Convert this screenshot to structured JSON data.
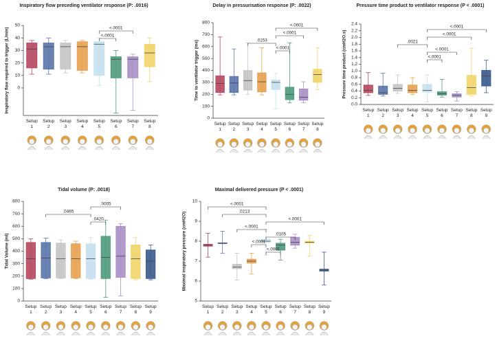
{
  "chart_data": [
    {
      "type": "box",
      "title": "Inspiratory flow preceding ventilator response (P: .0016)",
      "ylabel": "Inspiratory flow required to trigger (L/min)",
      "categories": [
        "Setup 1",
        "Setup 2",
        "Setup 3",
        "Setup 4",
        "Setup 5",
        "Setup 6",
        "Setup 7",
        "Setup 8"
      ],
      "colors": [
        "#b5475e",
        "#5a74a8",
        "#c4c4c4",
        "#e6a050",
        "#c5e0ee",
        "#4f9a7a",
        "#a98fc5",
        "#f2d46a"
      ],
      "boxes": [
        [
          11,
          16,
          31,
          36,
          38
        ],
        [
          11,
          15,
          33,
          36,
          40
        ],
        [
          12,
          15,
          33,
          36,
          38
        ],
        [
          12,
          14,
          33,
          37,
          38
        ],
        [
          2,
          10,
          35,
          37,
          40
        ],
        [
          -20,
          8,
          23,
          25,
          30
        ],
        [
          -18,
          8,
          23,
          25,
          27
        ],
        [
          5,
          17,
          28,
          35,
          40
        ]
      ],
      "ylim": [
        -22,
        50
      ],
      "yticks": [
        0,
        10,
        20,
        30,
        40,
        50
      ],
      "annotations": [
        {
          "label": "<.0001",
          "from": "Setup 5",
          "to": "Setup 7"
        },
        {
          "label": "<.0001",
          "from": "Setup 5",
          "to": "Setup 6"
        }
      ]
    },
    {
      "type": "box",
      "title": "Delay in pressurisation response (P: .0022)",
      "ylabel": "Time to ventilator trigger (ms)",
      "categories": [
        "Setup 1",
        "Setup 2",
        "Setup 3",
        "Setup 4",
        "Setup 5",
        "Setup 6",
        "Setup 7",
        "Setup 8"
      ],
      "colors": [
        "#b5475e",
        "#5a74a8",
        "#c4c4c4",
        "#e6a050",
        "#c5e0ee",
        "#4f9a7a",
        "#a98fc5",
        "#f2d46a"
      ],
      "boxes": [
        [
          195,
          215,
          290,
          355,
          680
        ],
        [
          195,
          215,
          295,
          350,
          580
        ],
        [
          200,
          235,
          315,
          400,
          630
        ],
        [
          195,
          220,
          305,
          380,
          590
        ],
        [
          80,
          240,
          300,
          320,
          375
        ],
        [
          130,
          155,
          200,
          260,
          630
        ],
        [
          130,
          150,
          175,
          245,
          305
        ],
        [
          240,
          300,
          365,
          410,
          590
        ]
      ],
      "ylim": [
        0,
        800
      ],
      "yticks": [
        0,
        100,
        200,
        300,
        400,
        500,
        600,
        700,
        800
      ],
      "annotations": [
        {
          "label": "<.0001",
          "from": "Setup 5",
          "to": "Setup 8"
        },
        {
          "label": "<.0001",
          "from": "Setup 5",
          "to": "Setup 7"
        },
        {
          "label": ".0153",
          "from": "Setup 3",
          "to": "Setup 5"
        },
        {
          "label": "<.0001",
          "from": "Setup 5",
          "to": "Setup 6"
        }
      ]
    },
    {
      "type": "box",
      "title": "Pressure time product to ventilator response (P < .0001)",
      "ylabel": "Pressure time product (cmH2O.s)",
      "categories": [
        "Setup 1",
        "Setup 2",
        "Setup 3",
        "Setup 4",
        "Setup 5",
        "Setup 6",
        "Setup 7",
        "Setup 8",
        "Setup 9"
      ],
      "colors": [
        "#b5475e",
        "#5a74a8",
        "#c4c4c4",
        "#e6a050",
        "#c5e0ee",
        "#4f9a7a",
        "#a98fc5",
        "#f2d46a",
        "#3a5a8c"
      ],
      "boxes": [
        [
          0.27,
          0.35,
          0.42,
          0.58,
          0.95
        ],
        [
          0.25,
          0.3,
          0.35,
          0.55,
          0.93
        ],
        [
          0.33,
          0.4,
          0.48,
          0.6,
          0.88
        ],
        [
          0.3,
          0.35,
          0.42,
          0.58,
          0.8
        ],
        [
          0.08,
          0.37,
          0.42,
          0.6,
          0.88
        ],
        [
          0.22,
          0.28,
          0.32,
          0.38,
          0.75
        ],
        [
          0.1,
          0.22,
          0.27,
          0.32,
          0.38
        ],
        [
          0.25,
          0.3,
          0.5,
          0.87,
          1.68
        ],
        [
          0.35,
          0.55,
          0.85,
          1.02,
          1.32
        ]
      ],
      "ylim": [
        0,
        2.4
      ],
      "yticks": [
        {
          "value": 0,
          "label": "0.0"
        },
        0.2,
        0.4,
        0.6,
        0.8,
        {
          "value": 1,
          "label": "1.0"
        },
        1.2,
        1.4,
        1.6,
        1.8,
        {
          "value": 2,
          "label": "2.0"
        },
        2.2,
        2.4
      ],
      "annotations": [
        {
          "label": "<.0001",
          "from": "Setup 5",
          "to": "Setup 9"
        },
        {
          "label": "<.0001",
          "from": "Setup 5",
          "to": "Setup 8"
        },
        {
          "label": ".0021",
          "from": "Setup 3",
          "to": "Setup 5"
        },
        {
          "label": "<.0001",
          "from": "Setup 5",
          "to": "Setup 7"
        },
        {
          "label": "<.0001",
          "from": "Setup 5",
          "to": "Setup 6"
        }
      ]
    },
    {
      "type": "box",
      "title": "Tidal volume (P: .0018)",
      "ylabel": "Tidal Volume (ml)",
      "categories": [
        "Setup 1",
        "Setup 2",
        "Setup 3",
        "Setup 4",
        "Setup 5",
        "Setup 6",
        "Setup 7",
        "Setup 8",
        "Setup 9"
      ],
      "colors": [
        "#b5475e",
        "#5a74a8",
        "#c4c4c4",
        "#e6a050",
        "#c5e0ee",
        "#4f9a7a",
        "#a98fc5",
        "#f2d46a",
        "#3a5a8c"
      ],
      "boxes": [
        [
          175,
          180,
          340,
          470,
          500
        ],
        [
          180,
          185,
          345,
          470,
          505
        ],
        [
          180,
          185,
          340,
          465,
          490
        ],
        [
          180,
          185,
          340,
          460,
          480
        ],
        [
          175,
          180,
          340,
          460,
          510
        ],
        [
          30,
          180,
          350,
          520,
          650
        ],
        [
          40,
          190,
          360,
          600,
          620
        ],
        [
          170,
          180,
          340,
          450,
          510
        ],
        [
          170,
          180,
          320,
          410,
          450
        ]
      ],
      "ylim": [
        0,
        800
      ],
      "yticks": [
        0,
        100,
        200,
        300,
        400,
        500,
        600,
        700,
        800
      ],
      "annotations": [
        {
          "label": ".0005",
          "from": "Setup 5",
          "to": "Setup 7"
        },
        {
          "label": ".0465",
          "from": "Setup 2",
          "to": "Setup 5"
        },
        {
          "label": ".0420",
          "from": "Setup 5",
          "to": "Setup 6"
        }
      ]
    },
    {
      "type": "box",
      "title": "Maximal delivered pressure (P < .0001)",
      "ylabel": "Maximal inspiratory pressure (cmH2O)",
      "categories": [
        "Setup 1",
        "Setup 2",
        "Setup 3",
        "Setup 4",
        "Setup 5",
        "Setup 6",
        "Setup 7",
        "Setup 8",
        "Setup 9"
      ],
      "colors": [
        "#b5475e",
        "#5a74a8",
        "#c4c4c4",
        "#e6a050",
        "#c5e0ee",
        "#4f9a7a",
        "#a98fc5",
        "#f2d46a",
        "#3a5a8c"
      ],
      "boxes": [
        [
          7.2,
          7.75,
          7.8,
          7.85,
          8.4
        ],
        [
          7.4,
          7.88,
          7.9,
          7.92,
          8.5
        ],
        [
          6.05,
          6.62,
          6.7,
          6.85,
          7.4
        ],
        [
          6.35,
          6.9,
          7.0,
          7.1,
          7.4
        ],
        [
          7.3,
          7.95,
          8.0,
          8.1,
          8.6
        ],
        [
          7.05,
          7.55,
          7.8,
          7.9,
          8.1
        ],
        [
          7.65,
          7.8,
          7.95,
          8.2,
          8.35
        ],
        [
          7.25,
          7.9,
          7.95,
          8.0,
          8.3
        ],
        [
          5.8,
          6.5,
          6.55,
          6.6,
          7.45
        ]
      ],
      "ylim": [
        5,
        10
      ],
      "yticks": [
        5,
        6,
        7,
        8,
        9,
        10
      ],
      "annotations": [
        {
          "label": "<.0001",
          "from": "Setup 1",
          "to": "Setup 5"
        },
        {
          "label": ".0213",
          "from": "Setup 2",
          "to": "Setup 5"
        },
        {
          "label": "<.0001",
          "from": "Setup 5",
          "to": "Setup 9"
        },
        {
          "label": "<.0001",
          "from": "Setup 3",
          "to": "Setup 5"
        },
        {
          "label": ".0105",
          "from": "Setup 5",
          "to": "Setup 7"
        },
        {
          "label": "<.0001",
          "from": "Setup 4",
          "to": "Setup 5"
        },
        {
          "label": "<.0001",
          "from": "Setup 5",
          "to": "Setup 6"
        }
      ]
    }
  ]
}
